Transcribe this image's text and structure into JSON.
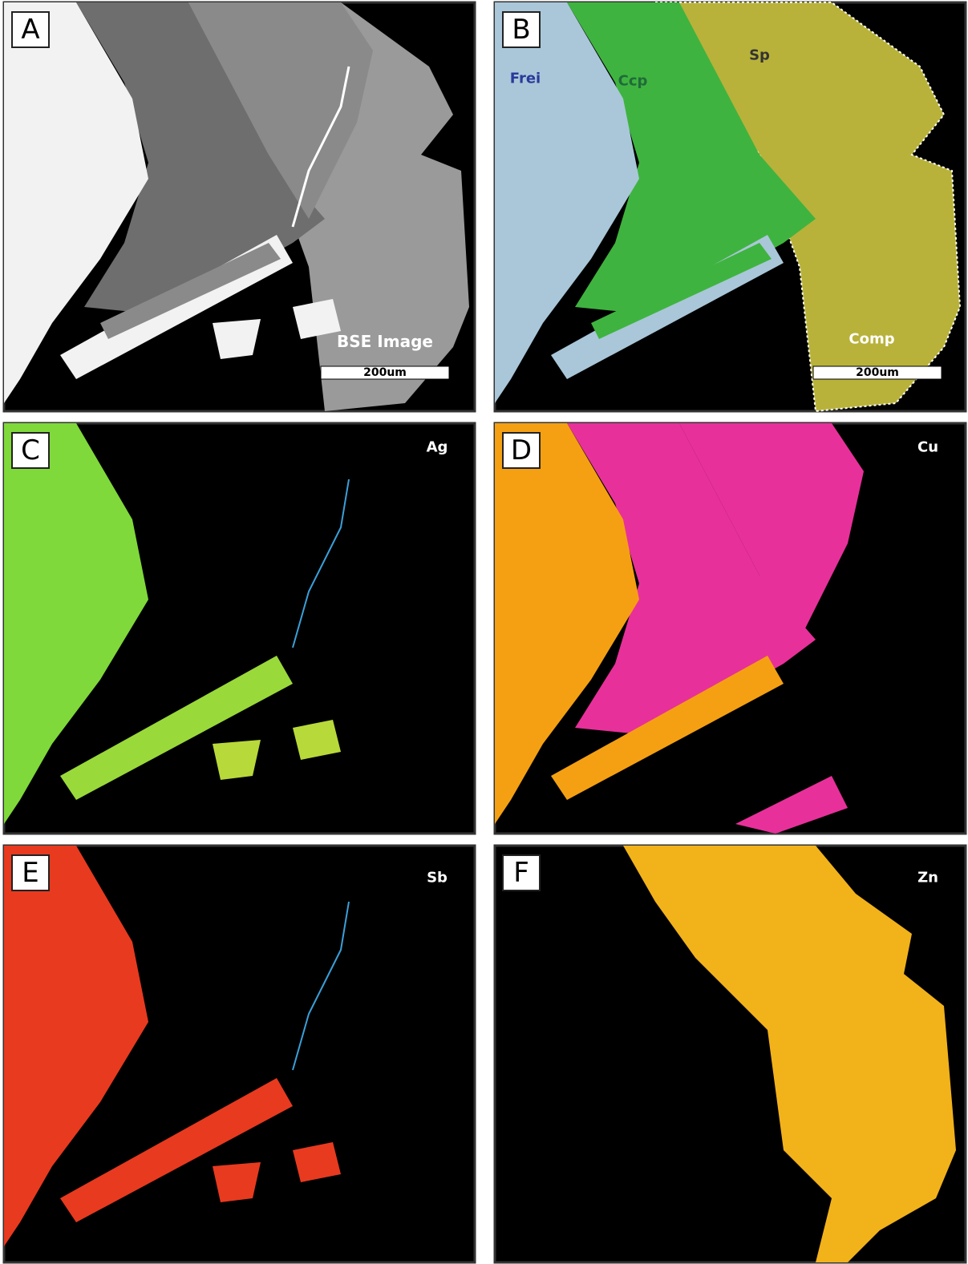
{
  "panels": [
    {
      "letter": "A",
      "caption": "BSE Image",
      "scale_bar": "200um"
    },
    {
      "letter": "B",
      "phases": [
        "Frei",
        "Ccp",
        "Sp",
        "Comp"
      ],
      "scale_bar": "200um"
    },
    {
      "letter": "C",
      "element": "Ag"
    },
    {
      "letter": "D",
      "element": "Cu"
    },
    {
      "letter": "E",
      "element": "Sb"
    },
    {
      "letter": "F",
      "element": "Zn"
    }
  ]
}
